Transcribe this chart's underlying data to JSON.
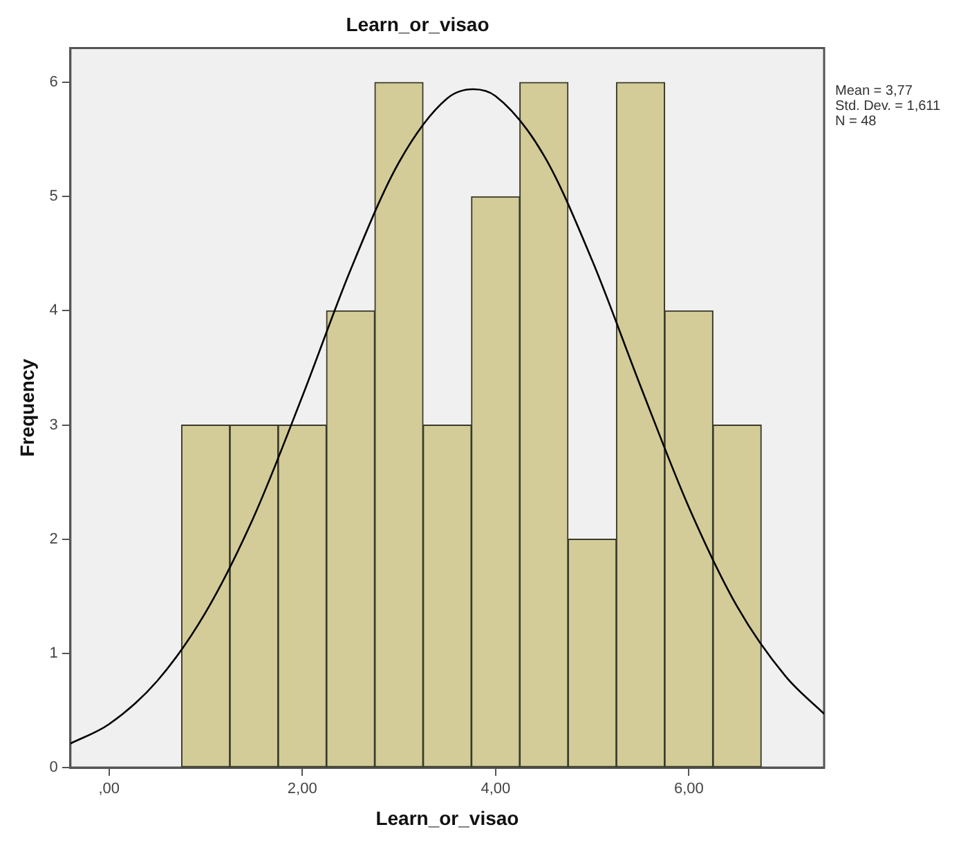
{
  "chart_data": {
    "type": "histogram",
    "title": "Learn_or_visao",
    "xlabel": "Learn_or_visao",
    "ylabel": "Frequency",
    "bins": [
      0.75,
      1.25,
      1.75,
      2.25,
      2.75,
      3.25,
      3.75,
      4.25,
      4.75,
      5.25,
      5.75,
      6.25,
      6.75
    ],
    "values": [
      3,
      3,
      3,
      4,
      6,
      3,
      5,
      6,
      2,
      6,
      4,
      3
    ],
    "color": "#d3cc98",
    "series": [
      {
        "type": "line",
        "color": "#000000",
        "x": [
          -0.4,
          0,
          0.5,
          1,
          1.5,
          2,
          2.5,
          3,
          3.5,
          3.77,
          4,
          4.5,
          5,
          5.5,
          6,
          6.5,
          7,
          7.4
        ],
        "values": [
          0.21,
          0.38,
          0.76,
          1.36,
          2.2,
          3.25,
          4.36,
          5.3,
          5.86,
          5.94,
          5.88,
          5.36,
          4.44,
          3.34,
          2.28,
          1.41,
          0.8,
          0.47
        ]
      }
    ],
    "xlim": [
      -0.4,
      7.4
    ],
    "xticks": [
      {
        "value": 0,
        "label": ",00"
      },
      {
        "value": 2,
        "label": "2,00"
      },
      {
        "value": 4,
        "label": "4,00"
      },
      {
        "value": 6,
        "label": "6,00"
      }
    ],
    "ylim": [
      0,
      6.3
    ],
    "yticks": [
      0,
      1,
      2,
      3,
      4,
      5,
      6
    ],
    "annotations": [
      "Mean = 3,77",
      "Std. Dev. = 1,611",
      "N = 48"
    ]
  }
}
